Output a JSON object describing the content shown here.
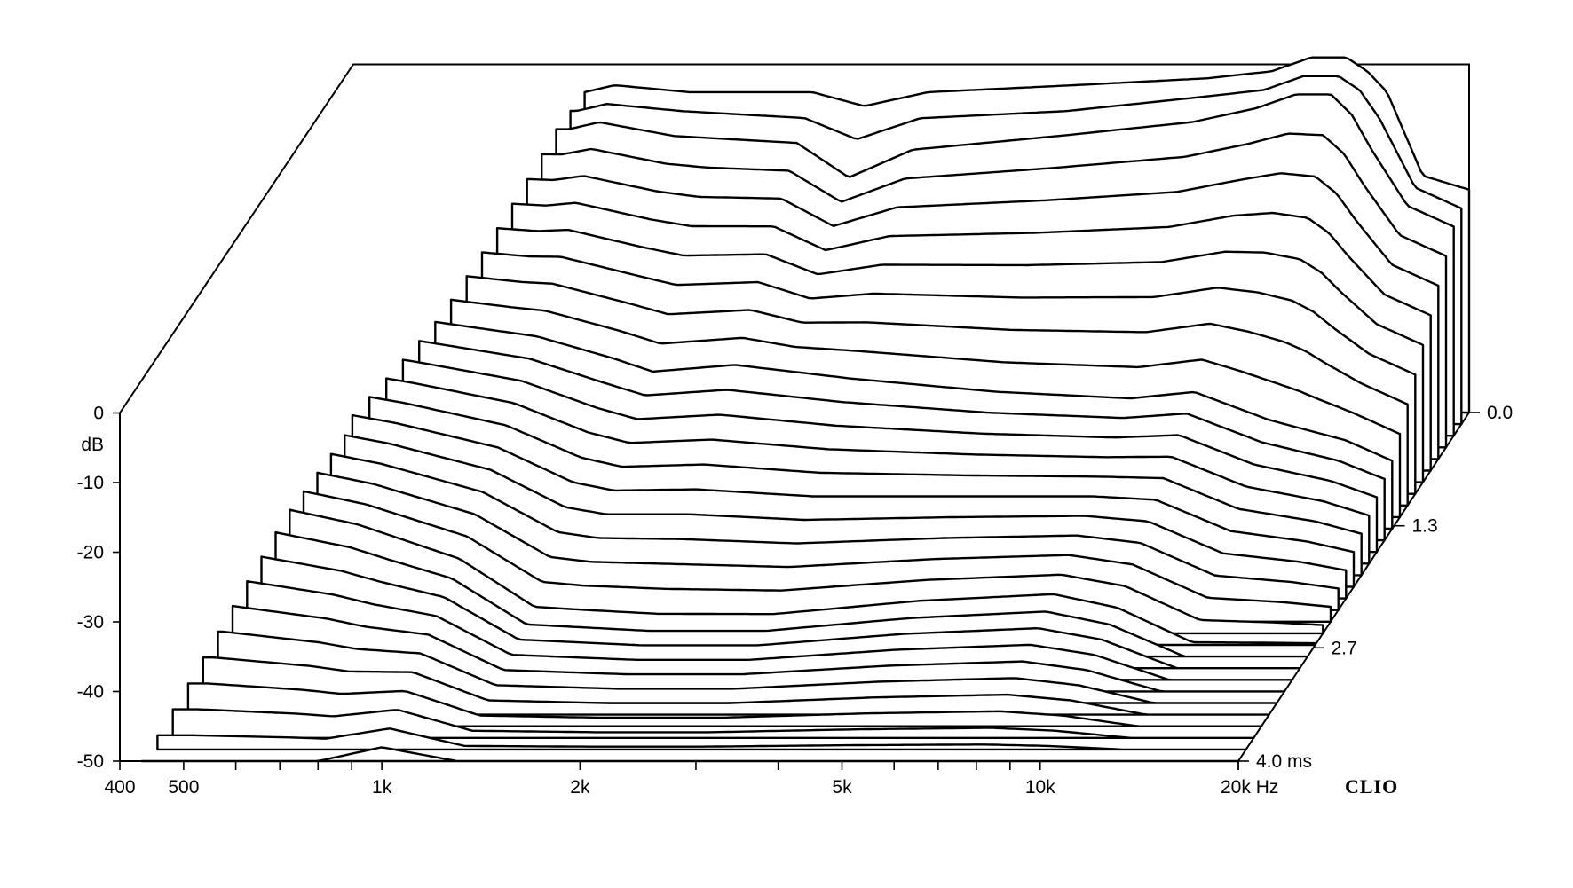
{
  "chart_data": {
    "type": "waterfall",
    "title": "",
    "xlabel": "Hz",
    "ylabel": "dB",
    "zlabel": "ms",
    "x_scale": "log",
    "xlim": [
      400,
      20000
    ],
    "ylim": [
      -50,
      0
    ],
    "zlim": [
      0.0,
      4.0
    ],
    "x_tick_labels": [
      "400",
      "500",
      "1k",
      "2k",
      "5k",
      "10k",
      "20k Hz"
    ],
    "x_tick_values": [
      400,
      500,
      1000,
      2000,
      5000,
      10000,
      20000
    ],
    "y_tick_labels": [
      "0",
      "-10",
      "-20",
      "-30",
      "-40",
      "-50"
    ],
    "y_tick_values": [
      0,
      -10,
      -20,
      -30,
      -40,
      -50
    ],
    "y_unit_label": "dB",
    "z_tick_labels": [
      "0.0",
      "1.3",
      "2.7",
      "4.0  ms"
    ],
    "z_tick_values": [
      0.0,
      1.3,
      2.7,
      4.0
    ],
    "slice_count": 31,
    "grid": false,
    "brand": "CLIO",
    "series": [
      {
        "t_ms": 0.0,
        "freq_hz": [
          900,
          1000,
          1300,
          2000,
          2400,
          3000,
          5000,
          8000,
          10000,
          11500,
          13000,
          14000,
          15000,
          17000,
          20000
        ],
        "db": [
          -4,
          -3,
          -4,
          -4,
          -6,
          -4,
          -3,
          -2,
          -1,
          1,
          1,
          -1,
          -4,
          -16,
          -18
        ]
      },
      {
        "t_ms": 0.13,
        "freq_hz": [
          900,
          1000,
          1300,
          2000,
          2400,
          3000,
          5000,
          8000,
          10000,
          11500,
          13000,
          14000,
          15000,
          17000,
          20000
        ],
        "db": [
          -5,
          -4,
          -5,
          -6,
          -9,
          -6,
          -5,
          -3,
          -2,
          0,
          0,
          -2,
          -6,
          -16,
          -19
        ]
      },
      {
        "t_ms": 0.27,
        "freq_hz": [
          900,
          1000,
          1300,
          2000,
          2400,
          3000,
          5000,
          8000,
          10000,
          11500,
          13000,
          14000,
          15000,
          17000,
          20000
        ],
        "db": [
          -6,
          -5,
          -7,
          -8,
          -13,
          -9,
          -7,
          -5,
          -3,
          -1,
          -1,
          -4,
          -9,
          -17,
          -20
        ]
      },
      {
        "t_ms": 1.3,
        "freq_hz": [
          500,
          700,
          1000,
          1300,
          1500,
          2000,
          3000,
          5000,
          8000,
          10000,
          13000,
          17000,
          20000
        ],
        "db": [
          -18,
          -20,
          -22,
          -25,
          -27,
          -26,
          -28,
          -30,
          -31,
          -30,
          -34,
          -37,
          -40
        ]
      },
      {
        "t_ms": 2.7,
        "freq_hz": [
          500,
          700,
          1000,
          1300,
          2000,
          3000,
          5000,
          8000,
          10000,
          13000,
          20000
        ],
        "db": [
          -30,
          -33,
          -38,
          -45,
          -46,
          -46,
          -44,
          -43,
          -45,
          -50,
          -50
        ]
      },
      {
        "t_ms": 4.0,
        "freq_hz": [
          400,
          600,
          800,
          1000,
          1300,
          2000,
          5000,
          10000,
          20000
        ],
        "db": [
          -50,
          -50,
          -50,
          -48,
          -50,
          -50,
          -50,
          -50,
          -50
        ]
      }
    ]
  }
}
